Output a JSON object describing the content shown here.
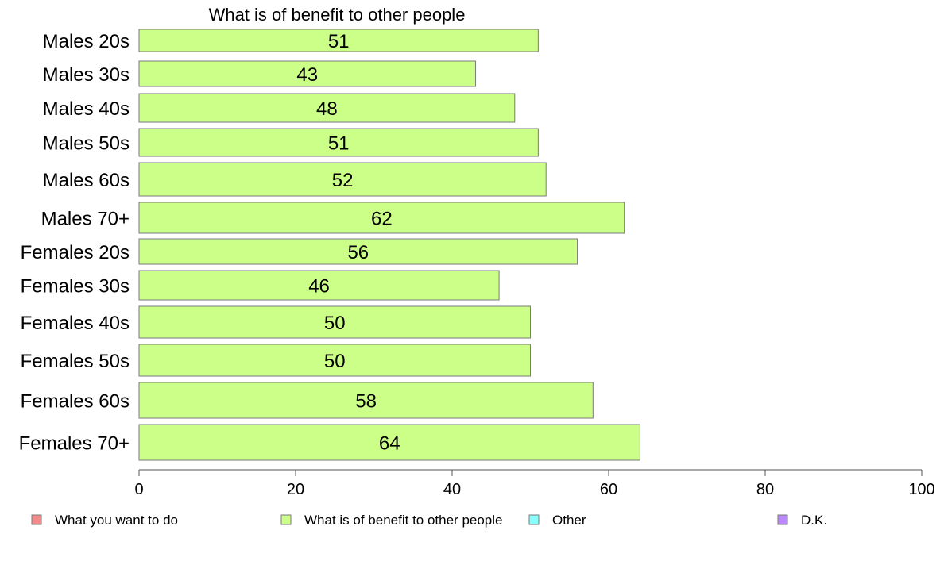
{
  "chart_data": {
    "type": "bar",
    "orientation": "horizontal",
    "title": "What is of benefit to other people",
    "categories": [
      "Males 20s",
      "Males 30s",
      "Males 40s",
      "Males 50s",
      "Males 60s",
      "Males 70+",
      "Females 20s",
      "Females 30s",
      "Females 40s",
      "Females 50s",
      "Females 60s",
      "Females 70+"
    ],
    "values": [
      51,
      43,
      48,
      51,
      52,
      62,
      56,
      46,
      50,
      50,
      58,
      64
    ],
    "data_labels": [
      "51",
      "43",
      "48",
      "51",
      "52",
      "62",
      "56",
      "46",
      "50",
      "50",
      "58",
      "64"
    ],
    "bar_color": "#ccff88",
    "xlim": [
      0,
      100
    ],
    "x_ticks": [
      0,
      20,
      40,
      60,
      80,
      100
    ],
    "x_tick_labels": [
      "0",
      "20",
      "40",
      "60",
      "80",
      "100"
    ],
    "grid": false,
    "legend_position": "bottom",
    "legend": [
      {
        "label": "What you want to do",
        "color": "#f28c8c"
      },
      {
        "label": "What is of benefit to other people",
        "color": "#ccff88"
      },
      {
        "label": "Other",
        "color": "#88ffff"
      },
      {
        "label": "D.K.",
        "color": "#bb88ff"
      }
    ]
  }
}
